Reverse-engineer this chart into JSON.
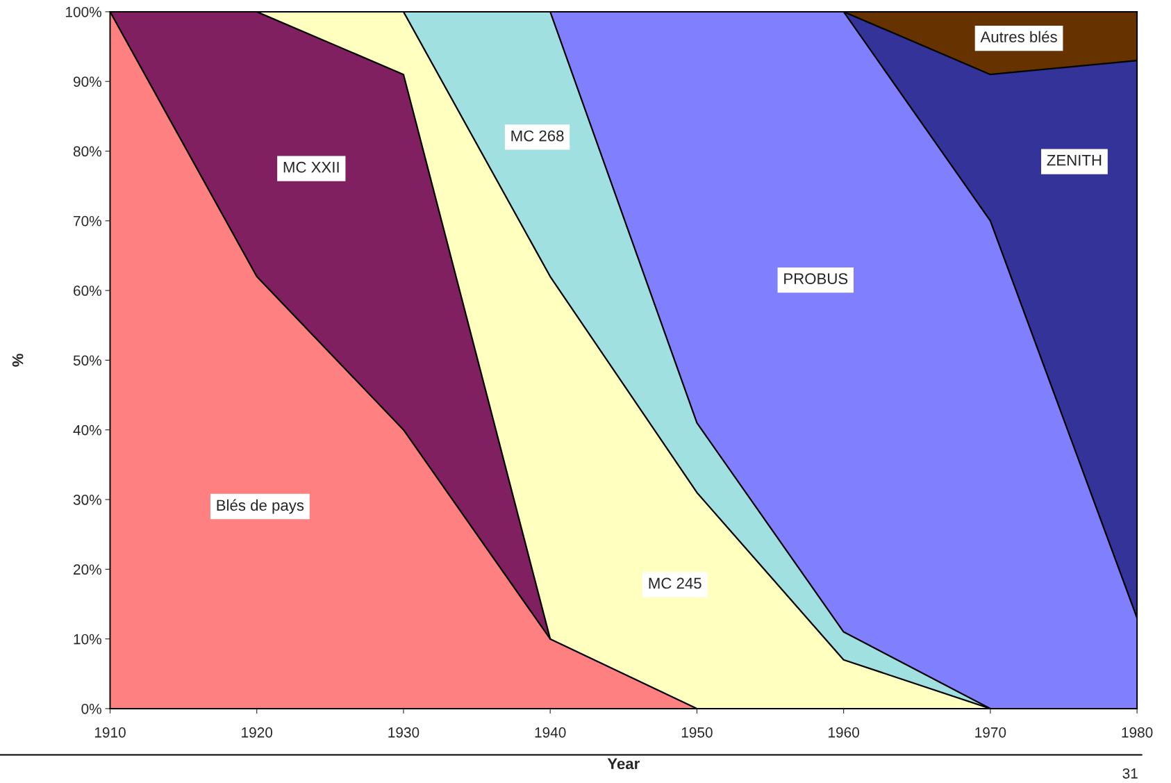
{
  "chart_data": {
    "type": "area",
    "stacked": true,
    "xlabel": "Year",
    "ylabel": "%",
    "x": [
      1910,
      1920,
      1930,
      1940,
      1950,
      1960,
      1970,
      1980
    ],
    "xlim": [
      1910,
      1980
    ],
    "xticks": [
      1910,
      1920,
      1930,
      1940,
      1950,
      1960,
      1970,
      1980
    ],
    "ylim": [
      0,
      100
    ],
    "yticks": [
      {
        "value": 0,
        "label": "0%"
      },
      {
        "value": 10,
        "label": "10%"
      },
      {
        "value": 20,
        "label": "20%"
      },
      {
        "value": 30,
        "label": "30%"
      },
      {
        "value": 40,
        "label": "40%"
      },
      {
        "value": 50,
        "label": "50%"
      },
      {
        "value": 60,
        "label": "60%"
      },
      {
        "value": 70,
        "label": "70%"
      },
      {
        "value": 80,
        "label": "80%"
      },
      {
        "value": 90,
        "label": "90%"
      },
      {
        "value": 100,
        "label": "100%"
      }
    ],
    "series": [
      {
        "name": "Blés de pays",
        "color": "#ff8080",
        "values": [
          100,
          62,
          40,
          10,
          0,
          null,
          null,
          null
        ]
      },
      {
        "name": "MC XXII",
        "color": "#802060",
        "values": [
          0,
          38,
          51,
          0,
          null,
          null,
          null,
          null
        ]
      },
      {
        "name": "MC 245",
        "color": "#ffffc0",
        "values": [
          null,
          0,
          9,
          52,
          31,
          7,
          0,
          null
        ]
      },
      {
        "name": "MC 268",
        "color": "#a0e0e0",
        "values": [
          null,
          null,
          0,
          38,
          10,
          4,
          0,
          null
        ]
      },
      {
        "name": "PROBUS",
        "color": "#8080ff",
        "values": [
          null,
          null,
          null,
          0,
          59,
          89,
          70,
          13
        ]
      },
      {
        "name": "ZENITH",
        "color": "#333399",
        "values": [
          null,
          null,
          null,
          null,
          null,
          0,
          21,
          80
        ]
      },
      {
        "name": "Autres blés",
        "color": "#663300",
        "values": [
          null,
          null,
          null,
          null,
          null,
          0,
          9,
          7
        ]
      }
    ],
    "annotations": [
      "31"
    ]
  }
}
